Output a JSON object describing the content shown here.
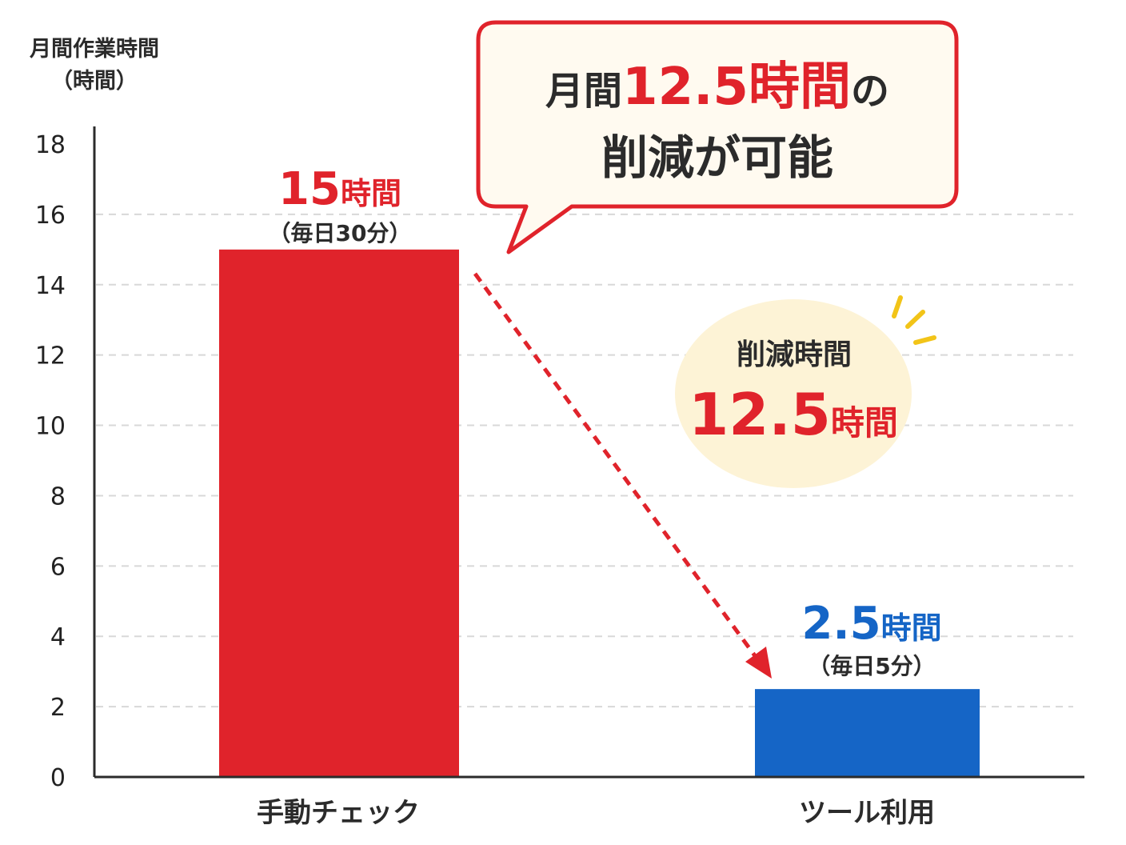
{
  "chart_data": {
    "type": "bar",
    "ylabel_line1": "月間作業時間",
    "ylabel_line2": "（時間）",
    "ylim": [
      0,
      18
    ],
    "yticks": [
      0,
      2,
      4,
      6,
      8,
      10,
      12,
      14,
      16,
      18
    ],
    "grid": "horizontal-dashed",
    "categories": [
      "手動チェック",
      "ツール利用"
    ],
    "values": [
      15,
      2.5
    ],
    "bar_colors": [
      "#e0232b",
      "#1565c6"
    ],
    "bar_labels": [
      {
        "value": "15",
        "unit": "時間",
        "note": "（毎日30分）"
      },
      {
        "value": "2.5",
        "unit": "時間",
        "note": "（毎日5分）"
      }
    ],
    "callout": {
      "prefix": "月間",
      "highlight": "12.5時間",
      "suffix": "の",
      "line2": "削減が可能"
    },
    "badge": {
      "title": "削減時間",
      "value": "12.5",
      "unit": "時間"
    }
  },
  "colors": {
    "accent_red": "#e0232b",
    "accent_blue": "#1565c6",
    "callout_bg": "#fffaf0",
    "badge_bg": "#fdf3d6",
    "sparkle": "#f2c418"
  }
}
